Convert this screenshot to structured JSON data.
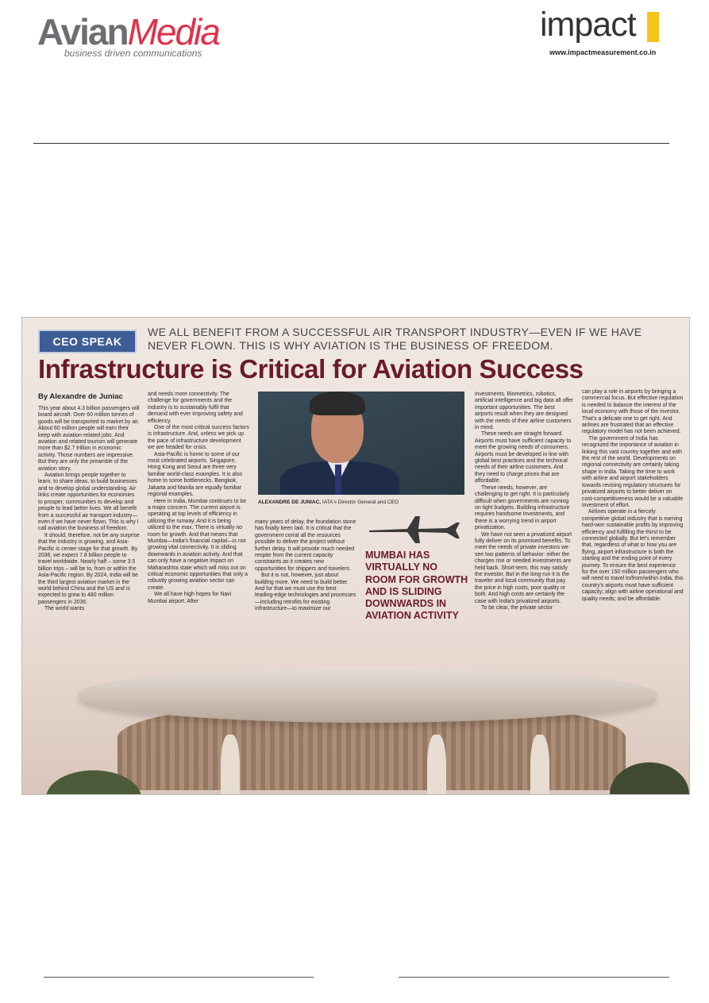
{
  "header": {
    "left_logo": {
      "brand_part1": "Avian",
      "brand_part2": "Media",
      "tagline": "business driven communications"
    },
    "right_logo": {
      "brand": "impact",
      "url": "www.impactmeasurement.co.in"
    }
  },
  "colors": {
    "avian_grey": "#6d6e71",
    "avian_red": "#e0314b",
    "impact_yellow": "#f6c21b",
    "headline_maroon": "#6a1b28",
    "kicker_blue": "#3d5d95"
  },
  "article": {
    "kicker_label": "CEO SPEAK",
    "kicker_text": "WE ALL BENEFIT FROM A SUCCESSFUL AIR TRANSPORT INDUSTRY—EVEN IF WE HAVE NEVER FLOWN. THIS IS WHY AVIATION IS THE BUSINESS OF FREEDOM.",
    "headline": "Infrastructure is Critical for Aviation Success",
    "byline": "By Alexandre de Juniac",
    "caption_name": "ALEXANDRE DE JUNIAC,",
    "caption_role": "IATA's Director General and CEO",
    "pullquote": "MUMBAI HAS VIRTUALLY NO ROOM FOR GROWTH AND IS SLIDING DOWNWARDS IN AVIATION ACTIVITY",
    "col1": [
      "This year about 4.3 billion passengers will board aircraft. Over 60 million tonnes of goods will be transported to market by air. About 60 million people will earn their keep with aviation-related jobs. And aviation and related tourism will generate more than $2.7 trillion in economic activity. Those numbers are impressive. But they are only the preamble of the aviation story.",
      "Aviation brings people together to learn, to share ideas, to build businesses and to develop global understanding. Air links create opportunities for economies to prosper, communities to develop and people to lead better lives. We all benefit from a successful air transport industry—even if we have never flown. This is why I call aviation the business of freedom.",
      "It should, therefore, not be any surprise that the industry is growing, and Asia-Pacific is center-stage for that growth. By 2036, we expect 7.8 billion people to travel worldwide. Nearly half – some 3.5 billion trips – will be to, from or within the Asia-Pacific region. By 2024, India will be the third largest aviation market in the world behind China and the US and is expected to grow to 480 million passengers in 2036.",
      "The world wants"
    ],
    "col2": [
      "and needs more connectivity. The challenge for governments and the industry is to sustainably fulfil that demand with ever improving safety and efficiency.",
      "One of the most critical success factors is infrastructure. And, unless we pick up the pace of infrastructure development we are headed for crisis.",
      "Asia-Pacific is home to some of our most celebrated airports. Singapore, Hong Kong and Seoul are three very familiar world-class examples. It is also home to some bottlenecks. Bangkok, Jakarta and Manila are equally familiar regional examples.",
      "Here in India, Mumbai continues to be a major concern. The current airport is operating at top levels of efficiency in utilizing the runway. And it is being utilized to the max. There is virtually no room for growth. And that means that Mumbai—India's financial capital—is not growing vital connectivity. It is sliding downwards in aviation activity. And that can only have a negative impact on Maharashtra state which will miss out on critical economic opportunities that only a robustly growing aviation sector can create.",
      "We all have high hopes for Navi Mumbai airport. After"
    ],
    "col3": [
      "many years of delay, the foundation stone has finally been laid. It is critical that the government corral all the resources possible to deliver the project without further delay. It will provide much needed respite from the current capacity constraints as it creates new opportunities for shippers and travelers.",
      "But it is not, however, just about building more. We need to build better. And for that we must use the best leading-edge technologies and processes—including retrofits for existing infrastructure—to maximize our"
    ],
    "col5": [
      "investments. Biometrics, robotics, artificial intelligence and big data all offer important opportunities. The best airports result when they are designed with the needs of their airline customers in mind.",
      "These needs are straight forward. Airports must have sufficient capacity to meet the growing needs of consumers. Airports must be developed in line with global best practices and the technical needs of their airline customers. And they need to charge prices that are affordable.",
      "These needs, however, are challenging to get right. It is particularly difficult when governments are running on tight budgets. Building infrastructure requires handsome investments, and there is a worrying trend in airport privatization.",
      "We have not seen a privatized airport fully deliver on its promised benefits. To meet the needs of private investors we see two patterns of behavior: either the charges rise or needed investments are held back. Short-term, this may satisfy the investor. But in the long-run it is the traveler and local community that pay the price in high costs, poor quality or both. And high costs are certainly the case with India's privatized airports.",
      "To be clear, the private sector"
    ],
    "col6": [
      "can play a role in airports by bringing a commercial focus. But effective regulation is needed to balance the interest of the local economy with those of the investor. That's a delicate one to get right. And airlines are frustrated that an effective regulatory model has not been achieved.",
      "The government of India has recognized the importance of aviation in linking this vast country together and with the rest of the world. Developments on regional connectivity are certainly taking shape in India. Taking the time to work with airline and airport stakeholders towards revising regulatory structures for privatized airports to better deliver on cost-competitiveness would be a valuable investment of effort.",
      "Airlines operate in a fiercely competitive global industry that is earning hard-won sustainable profits by improving efficiency and fulfilling the thirst to be connected globally. But let's remember that, regardless of what or how you are flying, airport infrastructure is both the starting and the ending point of every journey. To ensure the best experience for the over 150 million passengers who will need to travel to/from/within India, this country's airports must have sufficient capacity; align with airline operational and quality needs; and be affordable."
    ]
  }
}
